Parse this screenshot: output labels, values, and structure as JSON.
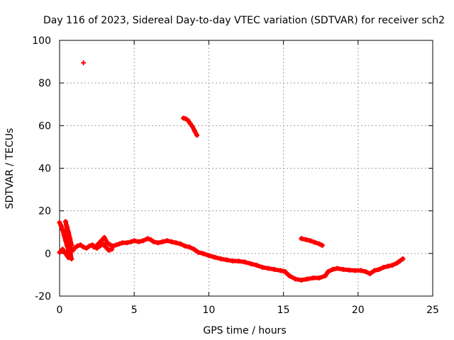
{
  "chart_data": {
    "type": "scatter",
    "title": "Day 116 of 2023, Sidereal Day-to-day VTEC variation (SDTVAR) for receiver sch2",
    "xlabel": "GPS time / hours",
    "ylabel": "SDTVAR / TECUs",
    "xlim": [
      0,
      25
    ],
    "ylim": [
      -20,
      100
    ],
    "xticks": [
      0,
      5,
      10,
      15,
      20,
      25
    ],
    "yticks": [
      -20,
      0,
      20,
      40,
      60,
      80,
      100
    ],
    "grid": true,
    "marker": "plus",
    "color": "#ff0000",
    "series": [
      {
        "name": "main",
        "points": [
          [
            0.0,
            0.5
          ],
          [
            0.1,
            1.0
          ],
          [
            0.2,
            2.0
          ],
          [
            0.3,
            1.0
          ],
          [
            0.4,
            0.0
          ],
          [
            0.5,
            -1.0
          ],
          [
            0.6,
            -2.0
          ],
          [
            0.7,
            0.5
          ],
          [
            0.8,
            2.0
          ],
          [
            0.9,
            1.5
          ],
          [
            1.0,
            2.5
          ],
          [
            1.2,
            3.5
          ],
          [
            1.4,
            4.0
          ],
          [
            1.6,
            3.0
          ],
          [
            1.8,
            2.5
          ],
          [
            2.0,
            3.5
          ],
          [
            2.2,
            4.0
          ],
          [
            2.4,
            3.0
          ],
          [
            2.6,
            4.5
          ],
          [
            2.8,
            6.0
          ],
          [
            3.0,
            7.5
          ],
          [
            3.2,
            5.0
          ],
          [
            3.4,
            4.0
          ],
          [
            3.6,
            3.5
          ],
          [
            3.8,
            4.0
          ],
          [
            4.0,
            4.5
          ],
          [
            4.2,
            5.0
          ],
          [
            4.5,
            5.0
          ],
          [
            4.8,
            5.5
          ],
          [
            5.0,
            6.0
          ],
          [
            5.3,
            5.5
          ],
          [
            5.6,
            6.0
          ],
          [
            5.9,
            7.0
          ],
          [
            6.1,
            6.5
          ],
          [
            6.3,
            5.5
          ],
          [
            6.6,
            5.0
          ],
          [
            6.9,
            5.5
          ],
          [
            7.2,
            6.0
          ],
          [
            7.5,
            5.5
          ],
          [
            7.8,
            5.0
          ],
          [
            8.1,
            4.5
          ],
          [
            8.4,
            3.5
          ],
          [
            8.7,
            3.0
          ],
          [
            9.0,
            2.0
          ],
          [
            9.3,
            0.5
          ],
          [
            9.6,
            0.0
          ],
          [
            10.0,
            -1.0
          ],
          [
            10.4,
            -1.8
          ],
          [
            10.8,
            -2.5
          ],
          [
            11.2,
            -3.0
          ],
          [
            11.6,
            -3.5
          ],
          [
            12.0,
            -3.6
          ],
          [
            12.4,
            -4.0
          ],
          [
            12.8,
            -4.8
          ],
          [
            13.2,
            -5.5
          ],
          [
            13.6,
            -6.5
          ],
          [
            14.0,
            -7.0
          ],
          [
            14.4,
            -7.5
          ],
          [
            14.8,
            -8.0
          ],
          [
            15.1,
            -8.5
          ],
          [
            15.4,
            -10.5
          ],
          [
            15.8,
            -12.0
          ],
          [
            16.2,
            -12.5
          ],
          [
            16.6,
            -12.0
          ],
          [
            17.0,
            -11.5
          ],
          [
            17.4,
            -11.5
          ],
          [
            17.8,
            -10.5
          ],
          [
            18.0,
            -8.5
          ],
          [
            18.3,
            -7.5
          ],
          [
            18.6,
            -7.0
          ],
          [
            19.0,
            -7.5
          ],
          [
            19.4,
            -7.8
          ],
          [
            19.8,
            -8.0
          ],
          [
            20.2,
            -8.0
          ],
          [
            20.5,
            -8.5
          ],
          [
            20.8,
            -9.5
          ],
          [
            21.1,
            -8.0
          ],
          [
            21.4,
            -7.5
          ],
          [
            21.7,
            -6.5
          ],
          [
            22.0,
            -6.0
          ],
          [
            22.3,
            -5.5
          ],
          [
            22.6,
            -4.5
          ],
          [
            22.8,
            -3.5
          ],
          [
            23.0,
            -2.5
          ]
        ]
      },
      {
        "name": "spike-start",
        "points": [
          [
            0.0,
            14.5
          ],
          [
            0.1,
            13.0
          ],
          [
            0.2,
            11.0
          ],
          [
            0.3,
            8.5
          ],
          [
            0.4,
            6.0
          ],
          [
            0.5,
            3.5
          ],
          [
            0.6,
            1.5
          ],
          [
            0.7,
            -0.5
          ],
          [
            0.8,
            -2.5
          ],
          [
            0.4,
            15.0
          ],
          [
            0.5,
            12.5
          ],
          [
            0.6,
            10.0
          ],
          [
            0.7,
            7.0
          ],
          [
            0.8,
            4.0
          ]
        ]
      },
      {
        "name": "spike-early",
        "points": [
          [
            2.3,
            3.0
          ],
          [
            2.5,
            2.5
          ],
          [
            2.7,
            3.5
          ],
          [
            2.9,
            4.5
          ],
          [
            3.1,
            3.0
          ],
          [
            3.3,
            1.5
          ],
          [
            3.5,
            2.0
          ]
        ]
      },
      {
        "name": "outlier-high",
        "points": [
          [
            1.6,
            89.5
          ]
        ]
      },
      {
        "name": "arc-60",
        "points": [
          [
            8.3,
            63.5
          ],
          [
            8.45,
            63.2
          ],
          [
            8.6,
            62.5
          ],
          [
            8.75,
            61.0
          ],
          [
            8.9,
            59.5
          ],
          [
            9.05,
            57.5
          ],
          [
            9.2,
            55.5
          ]
        ]
      },
      {
        "name": "arc-5",
        "points": [
          [
            16.2,
            7.0
          ],
          [
            16.5,
            6.5
          ],
          [
            16.8,
            6.0
          ],
          [
            17.1,
            5.2
          ],
          [
            17.4,
            4.5
          ],
          [
            17.6,
            3.8
          ]
        ]
      }
    ]
  }
}
